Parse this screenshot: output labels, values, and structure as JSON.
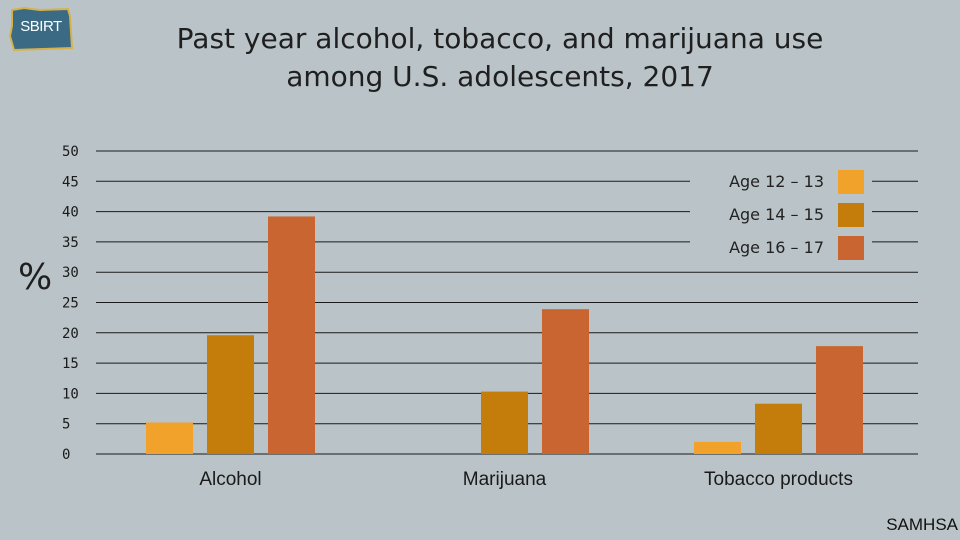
{
  "logo": {
    "text": "SBIRT",
    "fill": "#3b6a84",
    "stroke": "#d6b34a"
  },
  "header": {
    "title_line1": "Past year alcohol, tobacco, and marijuana use",
    "title_line2": "among U.S. adolescents, 2017"
  },
  "source": "SAMHSA",
  "chart_data": {
    "type": "bar",
    "title": "Past year alcohol, tobacco, and marijuana use among U.S. adolescents, 2017",
    "ylabel": "%",
    "xlabel": "",
    "ylim": [
      0,
      50
    ],
    "yticks": [
      0,
      5,
      10,
      15,
      20,
      25,
      30,
      35,
      40,
      45,
      50
    ],
    "grid": true,
    "legend_position": "top-right",
    "categories": [
      "Alcohol",
      "Marijuana",
      "Tobacco products"
    ],
    "series": [
      {
        "name": "Age 12 – 13",
        "color": "#f0a22a",
        "values": [
          5.2,
          0,
          2.0
        ]
      },
      {
        "name": "Age 14 – 15",
        "color": "#c47d0a",
        "values": [
          19.6,
          10.3,
          8.3
        ]
      },
      {
        "name": "Age 16 – 17",
        "color": "#c86530",
        "values": [
          39.2,
          23.9,
          17.8
        ]
      }
    ]
  }
}
